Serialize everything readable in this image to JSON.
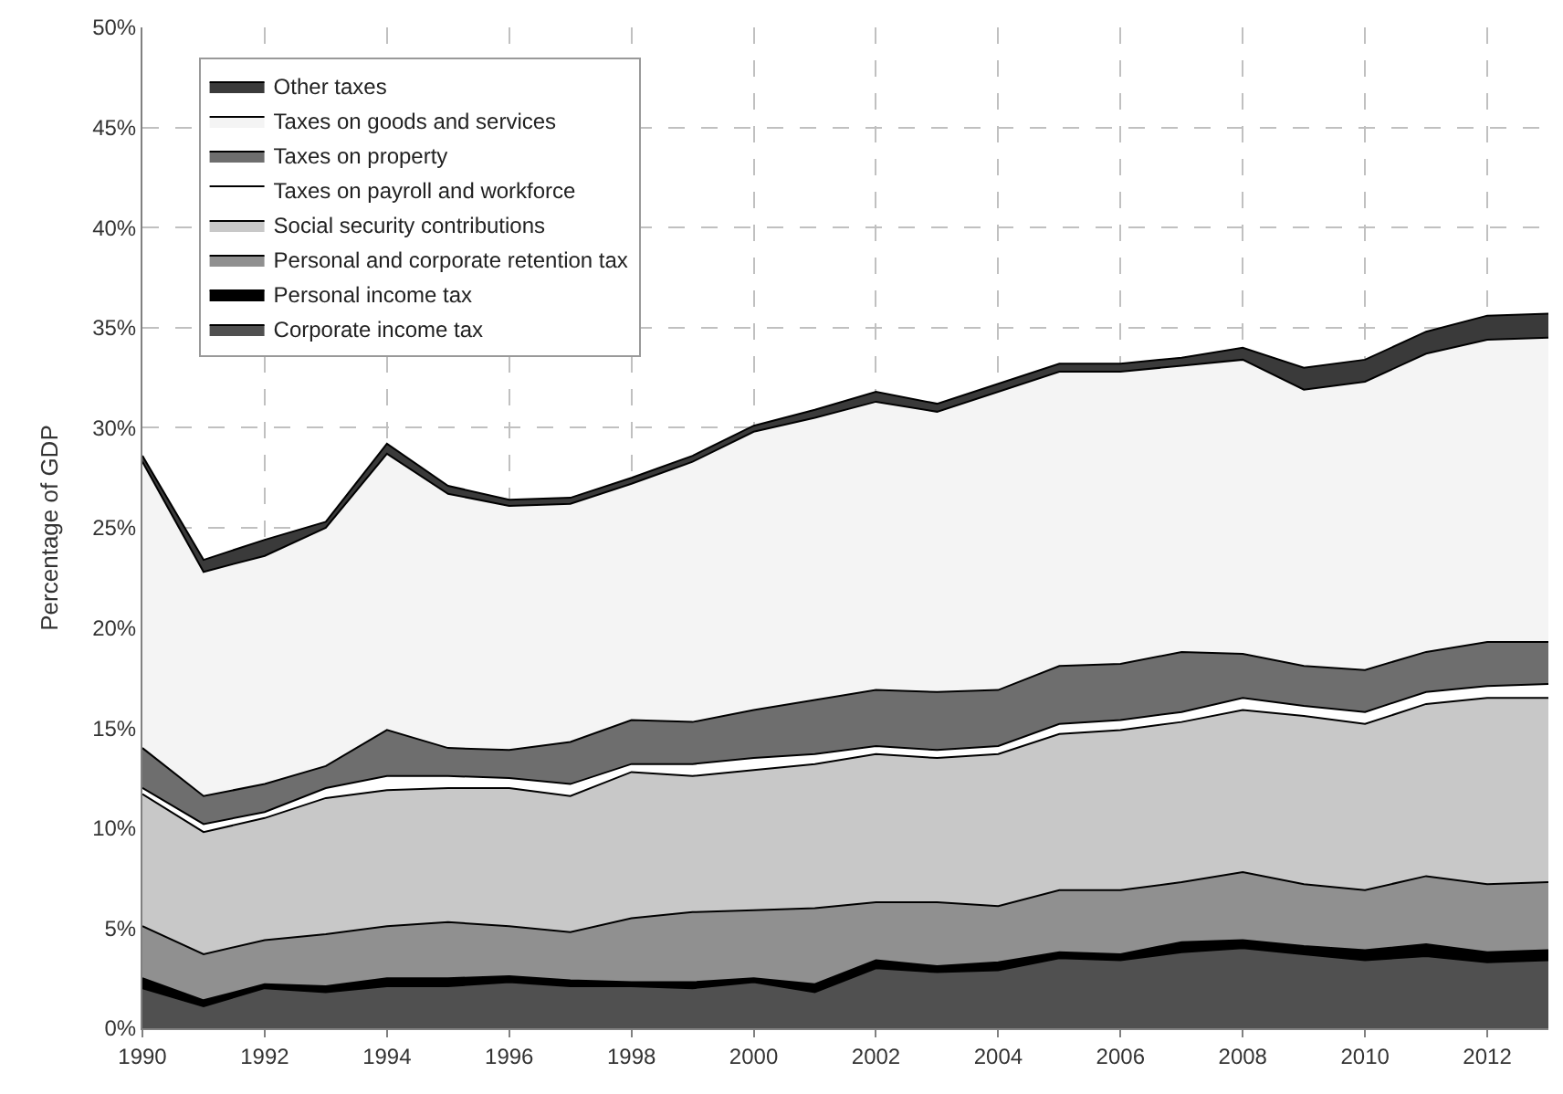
{
  "chart_data": {
    "type": "area",
    "stacked": true,
    "ylabel": "Percentage of GDP",
    "x": [
      1990,
      1991,
      1992,
      1993,
      1994,
      1995,
      1996,
      1997,
      1998,
      1999,
      2000,
      2001,
      2002,
      2003,
      2004,
      2005,
      2006,
      2007,
      2008,
      2009,
      2010,
      2011,
      2012,
      2013
    ],
    "xlim": [
      1990,
      2013
    ],
    "xticks": [
      1990,
      1992,
      1994,
      1996,
      1998,
      2000,
      2002,
      2004,
      2006,
      2008,
      2010,
      2012
    ],
    "ylim": [
      0,
      50
    ],
    "yticks": [
      {
        "value": 0,
        "label": "0%"
      },
      {
        "value": 5,
        "label": "5%"
      },
      {
        "value": 10,
        "label": "10%"
      },
      {
        "value": 15,
        "label": "15%"
      },
      {
        "value": 20,
        "label": "20%"
      },
      {
        "value": 25,
        "label": "25%"
      },
      {
        "value": 30,
        "label": "30%"
      },
      {
        "value": 35,
        "label": "35%"
      },
      {
        "value": 40,
        "label": "40%"
      },
      {
        "value": 45,
        "label": "45%"
      },
      {
        "value": 50,
        "label": "50%"
      }
    ],
    "grid": true,
    "legend": "top left",
    "series": [
      {
        "name": "Corporate income tax",
        "color": "#505050",
        "values": [
          2.0,
          1.1,
          2.0,
          1.8,
          2.1,
          2.1,
          2.3,
          2.1,
          2.1,
          2.0,
          2.3,
          1.8,
          3.0,
          2.8,
          2.9,
          3.5,
          3.4,
          3.8,
          4.0,
          3.7,
          3.4,
          3.6,
          3.3,
          3.4
        ]
      },
      {
        "name": "Personal income tax",
        "color": "#000000",
        "values": [
          0.5,
          0.3,
          0.2,
          0.3,
          0.4,
          0.4,
          0.3,
          0.3,
          0.2,
          0.3,
          0.2,
          0.4,
          0.4,
          0.3,
          0.4,
          0.3,
          0.3,
          0.5,
          0.4,
          0.4,
          0.5,
          0.6,
          0.5,
          0.5
        ]
      },
      {
        "name": "Personal and corporate retention tax",
        "color": "#909090",
        "values": [
          2.6,
          2.3,
          2.2,
          2.6,
          2.6,
          2.8,
          2.5,
          2.4,
          3.2,
          3.5,
          3.4,
          3.8,
          2.9,
          3.2,
          2.8,
          3.1,
          3.2,
          3.0,
          3.4,
          3.1,
          3.0,
          3.4,
          3.4,
          3.4
        ]
      },
      {
        "name": "Social security contributions",
        "color": "#c8c8c8",
        "values": [
          6.6,
          6.1,
          6.1,
          6.8,
          6.8,
          6.7,
          6.9,
          6.8,
          7.3,
          6.8,
          7.0,
          7.2,
          7.4,
          7.2,
          7.6,
          7.8,
          8.0,
          8.0,
          8.1,
          8.4,
          8.3,
          8.6,
          9.3,
          9.2
        ]
      },
      {
        "name": "Taxes on payroll and workforce",
        "color": "#ffffff",
        "values": [
          0.3,
          0.4,
          0.3,
          0.5,
          0.7,
          0.6,
          0.5,
          0.6,
          0.4,
          0.6,
          0.6,
          0.5,
          0.4,
          0.4,
          0.4,
          0.5,
          0.5,
          0.5,
          0.6,
          0.5,
          0.6,
          0.6,
          0.6,
          0.7
        ]
      },
      {
        "name": "Taxes on property",
        "color": "#6e6e6e",
        "values": [
          2.0,
          1.4,
          1.4,
          1.1,
          2.3,
          1.4,
          1.4,
          2.1,
          2.2,
          2.1,
          2.4,
          2.7,
          2.8,
          2.9,
          2.8,
          2.9,
          2.8,
          3.0,
          2.2,
          2.0,
          2.1,
          2.0,
          2.2,
          2.1
        ]
      },
      {
        "name": "Taxes on goods and services",
        "color": "#f4f4f4",
        "values": [
          14.3,
          11.2,
          11.4,
          11.9,
          13.8,
          12.7,
          12.2,
          11.9,
          11.8,
          13.0,
          13.9,
          14.1,
          14.4,
          14.0,
          14.9,
          14.7,
          14.6,
          14.3,
          14.7,
          13.8,
          14.4,
          14.9,
          15.1,
          15.2
        ]
      },
      {
        "name": "Other taxes",
        "color": "#3a3a3a",
        "values": [
          0.3,
          0.6,
          0.8,
          0.3,
          0.5,
          0.4,
          0.3,
          0.3,
          0.3,
          0.3,
          0.3,
          0.4,
          0.5,
          0.4,
          0.4,
          0.4,
          0.4,
          0.4,
          0.6,
          1.1,
          1.1,
          1.1,
          1.2,
          1.2
        ]
      }
    ]
  }
}
